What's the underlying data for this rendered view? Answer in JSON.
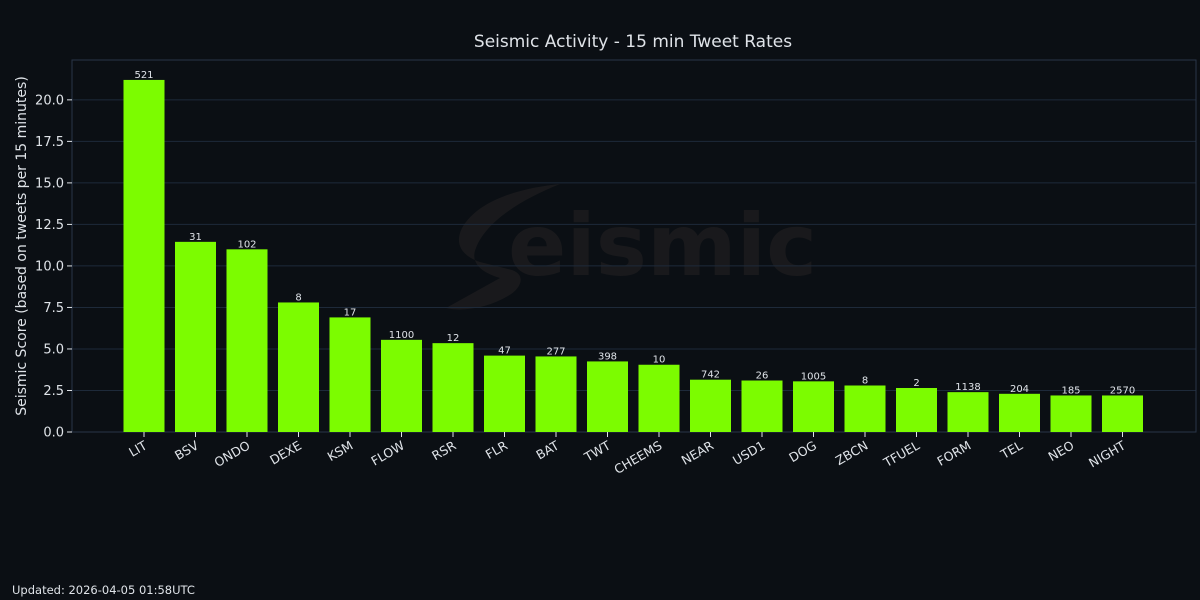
{
  "chart_data": {
    "type": "bar",
    "title": "Seismic Activity - 15 min Tweet Rates",
    "ylabel": "Seismic Score (based on tweets per 15 minutes)",
    "xlabel": "",
    "ylim": [
      0,
      22.4
    ],
    "yticks": [
      "0.0",
      "2.5",
      "5.0",
      "7.5",
      "10.0",
      "12.5",
      "15.0",
      "17.5",
      "20.0"
    ],
    "grid": true,
    "categories": [
      "LIT",
      "BSV",
      "ONDO",
      "DEXE",
      "KSM",
      "FLOW",
      "RSR",
      "FLR",
      "BAT",
      "TWT",
      "CHEEMS",
      "NEAR",
      "USD1",
      "DOG",
      "ZBCN",
      "TFUEL",
      "FORM",
      "TEL",
      "NEO",
      "NIGHT"
    ],
    "values": [
      21.2,
      11.45,
      11.0,
      7.8,
      6.9,
      5.55,
      5.35,
      4.6,
      4.55,
      4.25,
      4.05,
      3.15,
      3.1,
      3.05,
      2.8,
      2.65,
      2.4,
      2.3,
      2.2,
      2.2
    ],
    "data_labels": [
      "521",
      "31",
      "102",
      "8",
      "17",
      "1100",
      "12",
      "47",
      "277",
      "398",
      "10",
      "742",
      "26",
      "1005",
      "8",
      "2",
      "1138",
      "204",
      "185",
      "2570"
    ],
    "bar_color": "#7cfc00",
    "grid_color": "#1e2a3a",
    "watermark": "eismic"
  },
  "footer": {
    "updated": "Updated: 2026-04-05 01:58UTC"
  }
}
